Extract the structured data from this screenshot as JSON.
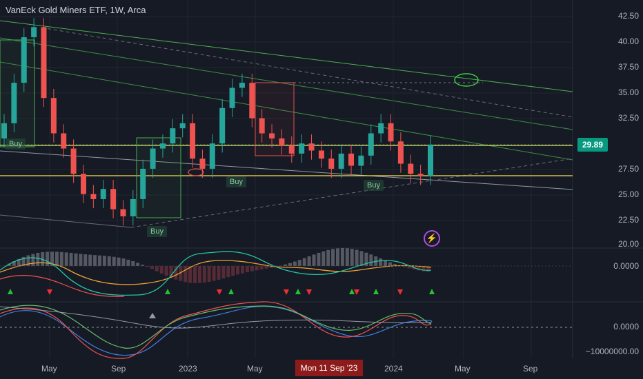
{
  "header": {
    "title": "VanEck Gold Miners ETF, 1W, Arca"
  },
  "price_axis": [
    "42.50",
    "40.00",
    "37.50",
    "35.00",
    "32.50",
    "27.50",
    "25.00",
    "22.50",
    "20.00"
  ],
  "last_price": "29.89",
  "indicator_axis": {
    "macd_zero": "0.0000",
    "osc_zero": "0.0000",
    "osc_low": "−10000000.00"
  },
  "time_axis": {
    "labels": [
      "May",
      "Sep",
      "2023",
      "May",
      "2024",
      "May",
      "Sep"
    ],
    "crosshair": "Mon 11 Sep '23"
  },
  "signals": {
    "buy_labels": [
      "Buy",
      "Buy",
      "Buy",
      "Buy"
    ]
  },
  "colors": {
    "background": "#161a25",
    "up": "#26a69a",
    "down": "#ef5350",
    "accent_line": "#f5e15a"
  },
  "icons": {
    "flash": "lightning-icon"
  },
  "chart_data": {
    "type": "candlestick",
    "ylim": [
      20.0,
      43.5
    ],
    "x_range": [
      "2022-02",
      "2024-10"
    ],
    "weekly_close_trace": [
      32.0,
      36.0,
      40.5,
      41.5,
      34.5,
      31.0,
      29.5,
      27.0,
      25.0,
      24.5,
      25.5,
      23.5,
      22.8,
      24.5,
      27.5,
      29.5,
      30.0,
      31.5,
      32.0,
      28.5,
      27.5,
      30.0,
      33.5,
      35.5,
      36.0,
      32.5,
      31.0,
      30.5,
      29.8,
      29.0,
      30.0,
      29.3,
      28.5,
      27.5,
      29.0,
      27.8,
      28.8,
      31.0,
      32.0,
      30.2,
      28.0,
      27.0,
      26.8,
      29.89
    ],
    "last_price": 29.89,
    "horizontal_levels": [
      29.89,
      26.9
    ]
  }
}
